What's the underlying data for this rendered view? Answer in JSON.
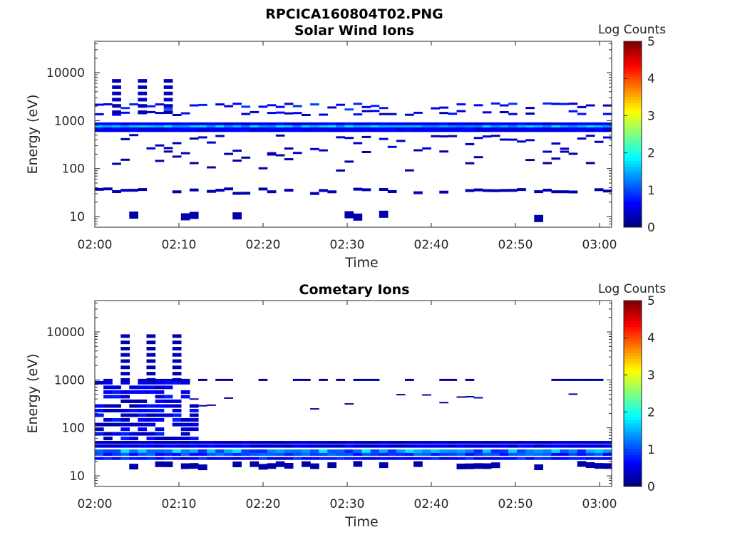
{
  "figure": {
    "filename": "RPCICA160804T02.PNG"
  },
  "chart_data": [
    {
      "type": "heatmap",
      "title": "Solar Wind Ions",
      "xlabel": "Time",
      "ylabel": "Energy (eV)",
      "x_ticks": [
        "02:00",
        "02:10",
        "02:20",
        "02:30",
        "02:40",
        "02:50",
        "03:00"
      ],
      "y_ticks": [
        "10",
        "100",
        "1000",
        "10000"
      ],
      "y_scale": "log",
      "ylim": [
        6,
        45000
      ],
      "colorbar": {
        "label": "Log Counts",
        "ticks": [
          "0",
          "1",
          "2",
          "3",
          "4",
          "5"
        ],
        "range": [
          0,
          5
        ],
        "colormap": "jet"
      },
      "description_bands": [
        {
          "energy": 800,
          "level": 1.2,
          "note": "main solar wind band, continuous"
        },
        {
          "energy": 1800,
          "level": 0.4
        },
        {
          "energy": 33,
          "level": 0.3
        }
      ]
    },
    {
      "type": "heatmap",
      "title": "Cometary Ions",
      "xlabel": "Time",
      "ylabel": "Energy (eV)",
      "x_ticks": [
        "02:00",
        "02:10",
        "02:20",
        "02:30",
        "02:40",
        "02:50",
        "03:00"
      ],
      "y_ticks": [
        "10",
        "100",
        "1000",
        "10000"
      ],
      "y_scale": "log",
      "ylim": [
        6,
        45000
      ],
      "colorbar": {
        "label": "Log Counts",
        "ticks": [
          "0",
          "1",
          "2",
          "3",
          "4",
          "5"
        ],
        "range": [
          0,
          5
        ],
        "colormap": "jet"
      },
      "description_bands": [
        {
          "energy": 32,
          "level": 1.4,
          "note": "main cometary ion band, continuous"
        },
        {
          "energy": 45,
          "level": 0.4
        },
        {
          "energy": 22,
          "level": 0.5
        },
        {
          "energy": 1000,
          "level": 0.2
        }
      ]
    }
  ]
}
